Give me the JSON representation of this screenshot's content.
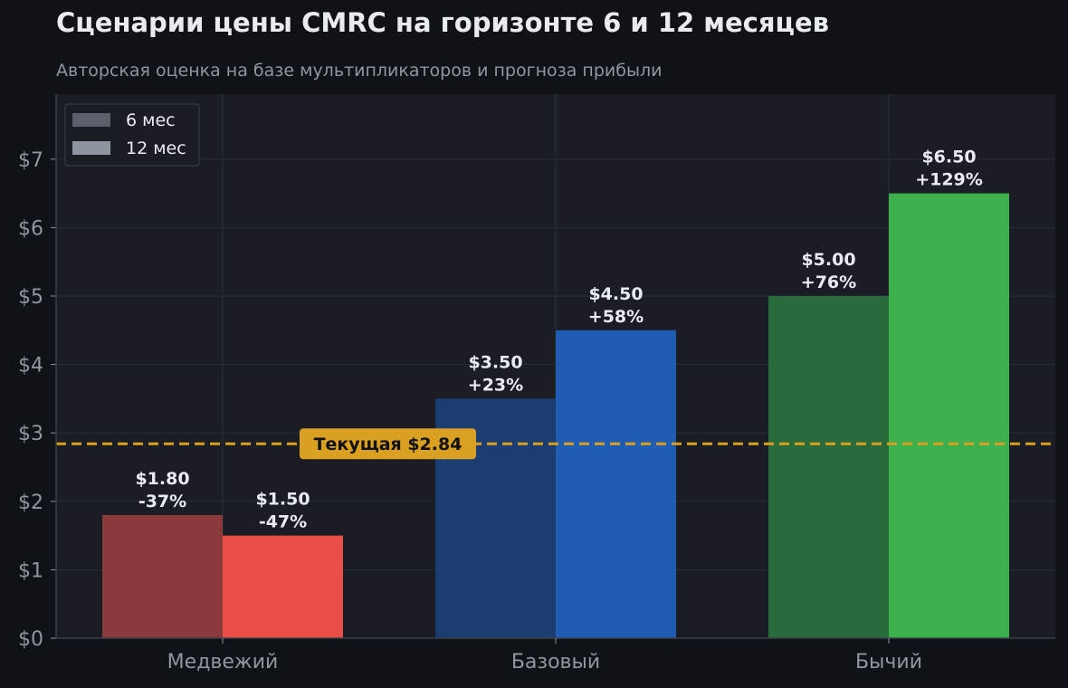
{
  "title": "Сценарии цены CMRC на горизонте 6 и 12 месяцев",
  "subtitle": "Авторская оценка на базе мультипликаторов и прогноза прибыли",
  "chart_data": {
    "type": "bar",
    "categories": [
      "Медвежий",
      "Базовый",
      "Бычий"
    ],
    "series": [
      {
        "name": "6 мес",
        "values": [
          1.8,
          3.5,
          5.0
        ],
        "labels": [
          "$1.80\n-37%",
          "$3.50\n+23%",
          "$5.00\n+76%"
        ],
        "colors": [
          "#8a3a3a",
          "#1c3d72",
          "#2a6b3c"
        ]
      },
      {
        "name": "12 мес",
        "values": [
          1.5,
          4.5,
          6.5
        ],
        "labels": [
          "$1.50\n-47%",
          "$4.50\n+58%",
          "$6.50\n+129%"
        ],
        "colors": [
          "#ea4f47",
          "#1f5cb2",
          "#3cb04d"
        ]
      }
    ],
    "legend_colors": [
      "#5a5f69",
      "#8e959e"
    ],
    "legend_position": "top-left",
    "ylim": [
      0,
      7.95
    ],
    "yticks": [
      0,
      1,
      2,
      3,
      4,
      5,
      6,
      7
    ],
    "ytick_labels": [
      "$0",
      "$1",
      "$2",
      "$3",
      "$4",
      "$5",
      "$6",
      "$7"
    ],
    "reference_line": {
      "value": 2.84,
      "label": "Текущая $2.84",
      "color": "#d9a021"
    },
    "grid": true,
    "background": "#1a1d24",
    "xlabel": "",
    "ylabel": ""
  }
}
